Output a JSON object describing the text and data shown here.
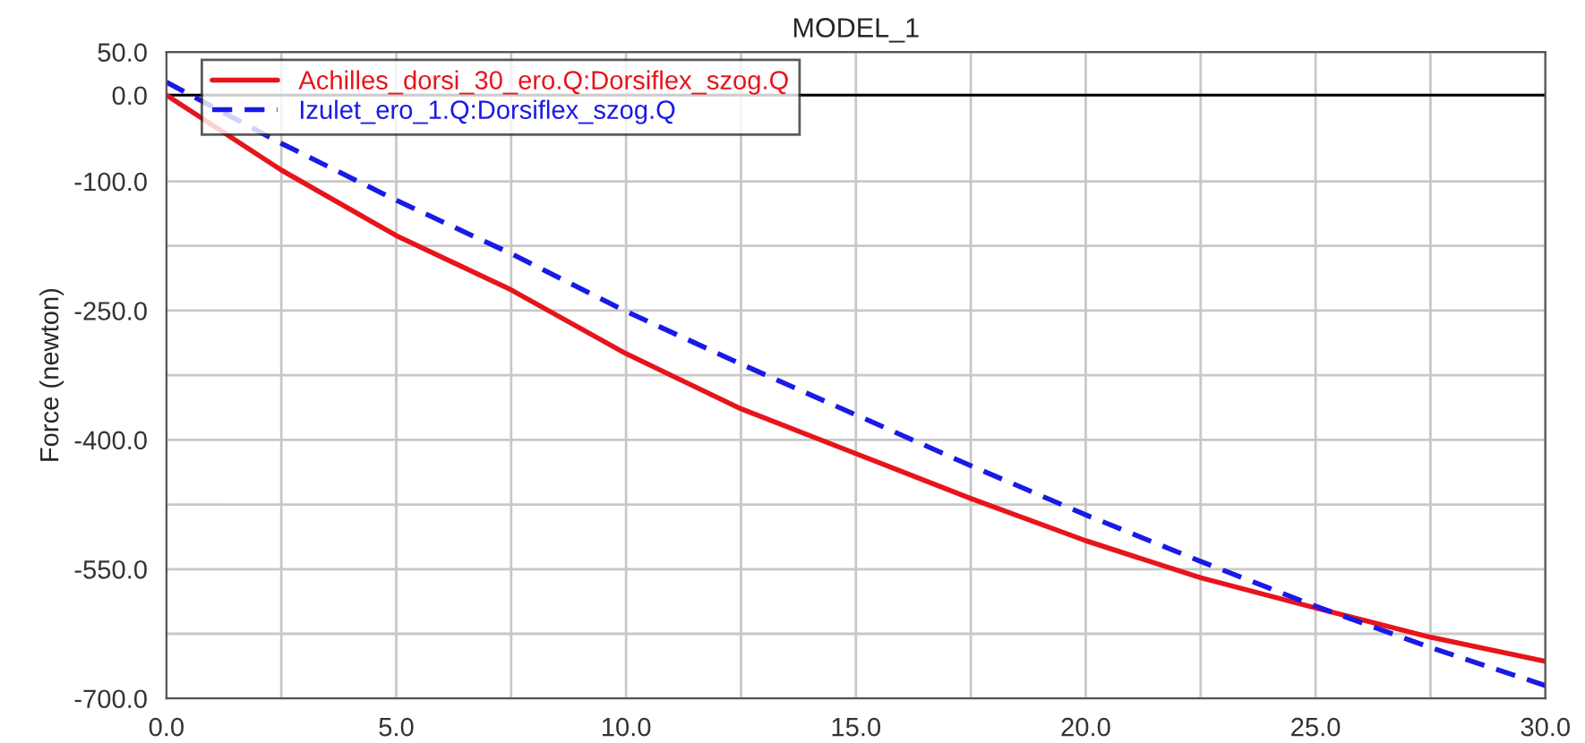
{
  "chart_data": {
    "type": "line",
    "title": "MODEL_1",
    "ylabel": "Force (newton)",
    "x": [
      0,
      2.5,
      5,
      7.5,
      10,
      12.5,
      15,
      17.5,
      20,
      22.5,
      25,
      27.5,
      30
    ],
    "series": [
      {
        "name": "Achilles_dorsi_30_ero.Q:Dorsiflex_szog.Q",
        "color": "#e8141c",
        "line_style": "solid",
        "values": [
          0,
          -87,
          -163,
          -226,
          -300,
          -364,
          -416,
          -468,
          -517,
          -560,
          -595,
          -629,
          -657
        ]
      },
      {
        "name": "Izulet_ero_1.Q:Dorsiflex_szog.Q",
        "color": "#1a1ae6",
        "line_style": "dashed",
        "values": [
          15,
          -56,
          -122,
          -184,
          -251,
          -312,
          -371,
          -430,
          -487,
          -541,
          -593,
          -641,
          -685
        ]
      }
    ],
    "xlim": [
      0,
      30
    ],
    "xticks": [
      {
        "value": 0,
        "label": "0.0"
      },
      {
        "value": 2.5,
        "label": null
      },
      {
        "value": 5,
        "label": "5.0"
      },
      {
        "value": 7.5,
        "label": null
      },
      {
        "value": 10,
        "label": "10.0"
      },
      {
        "value": 12.5,
        "label": null
      },
      {
        "value": 15,
        "label": "15.0"
      },
      {
        "value": 17.5,
        "label": null
      },
      {
        "value": 20,
        "label": "20.0"
      },
      {
        "value": 22.5,
        "label": null
      },
      {
        "value": 25,
        "label": "25.0"
      },
      {
        "value": 27.5,
        "label": null
      },
      {
        "value": 30,
        "label": "30.0"
      }
    ],
    "ylim": [
      -700,
      50
    ],
    "yticks": [
      {
        "value": 50,
        "label": "50.0"
      },
      {
        "value": 0,
        "label": "0.0"
      },
      {
        "value": -100,
        "label": "-100.0"
      },
      {
        "value": -175,
        "label": null
      },
      {
        "value": -250,
        "label": "-250.0"
      },
      {
        "value": -325,
        "label": null
      },
      {
        "value": -400,
        "label": "-400.0"
      },
      {
        "value": -475,
        "label": null
      },
      {
        "value": -550,
        "label": "-550.0"
      },
      {
        "value": -625,
        "label": null
      },
      {
        "value": -700,
        "label": "-700.0"
      }
    ],
    "ref_lines": [
      {
        "axis": "y",
        "value": 0,
        "color": "#000000"
      }
    ],
    "grid": true,
    "legend": "top left"
  }
}
